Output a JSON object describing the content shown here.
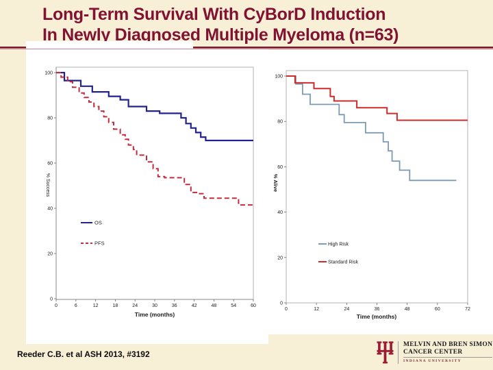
{
  "slide": {
    "title_line1": "Long-Term Survival With CyBorD Induction",
    "title_line2": "In Newly Diagnosed Multiple Myeloma (n=63)",
    "citation": "Reeder C.B. et al ASH 2013, #3192",
    "background_color": "#F7F0D6",
    "title_color": "#821231",
    "underline_color": "#7A1228"
  },
  "logo": {
    "org_line1": "MELVIN AND BREN SIMON",
    "org_line2": "CANCER CENTER",
    "university": "INDIANA UNIVERSITY",
    "trident_icon": "iu-trident",
    "trident_color": "#9D1C35"
  },
  "chart_data": [
    {
      "type": "line",
      "subtype": "kaplan-meier-step",
      "title": "",
      "xlabel": "Time (months)",
      "ylabel": "% Success",
      "xlim": [
        0,
        60
      ],
      "ylim": [
        0,
        100
      ],
      "xticks": [
        0,
        6,
        12,
        18,
        24,
        30,
        36,
        42,
        48,
        54,
        60
      ],
      "yticks": [
        0,
        20,
        40,
        60,
        80,
        100
      ],
      "grid": false,
      "legend_position": "inside-lower-left",
      "series": [
        {
          "name": "OS",
          "color": "#22228F",
          "style": "solid",
          "points": [
            [
              0,
              100
            ],
            [
              2.5,
              100
            ],
            [
              2.5,
              96.5
            ],
            [
              7.5,
              96.5
            ],
            [
              7.5,
              94
            ],
            [
              11,
              94
            ],
            [
              11,
              91.5
            ],
            [
              16,
              91.5
            ],
            [
              16,
              89.5
            ],
            [
              19.5,
              89.5
            ],
            [
              19.5,
              88
            ],
            [
              22,
              88
            ],
            [
              22,
              85
            ],
            [
              27.5,
              85
            ],
            [
              27.5,
              83
            ],
            [
              31.5,
              83
            ],
            [
              31.5,
              82
            ],
            [
              38,
              82
            ],
            [
              38,
              80
            ],
            [
              39.5,
              80
            ],
            [
              39.5,
              77.5
            ],
            [
              41,
              77.5
            ],
            [
              41,
              75.5
            ],
            [
              42.5,
              75.5
            ],
            [
              42.5,
              73.5
            ],
            [
              44,
              73.5
            ],
            [
              44,
              71.5
            ],
            [
              45.5,
              71.5
            ],
            [
              45.5,
              70
            ],
            [
              60,
              70
            ]
          ]
        },
        {
          "name": "PFS",
          "color": "#C22B3B",
          "style": "dashed",
          "points": [
            [
              0,
              100
            ],
            [
              1.5,
              100
            ],
            [
              1.5,
              98
            ],
            [
              3.5,
              98
            ],
            [
              3.5,
              96
            ],
            [
              5,
              96
            ],
            [
              5,
              93.5
            ],
            [
              7,
              93.5
            ],
            [
              7,
              91
            ],
            [
              8.5,
              91
            ],
            [
              8.5,
              89
            ],
            [
              10,
              89
            ],
            [
              10,
              87
            ],
            [
              11.5,
              87
            ],
            [
              11.5,
              85
            ],
            [
              13,
              85
            ],
            [
              13,
              83
            ],
            [
              14.5,
              83
            ],
            [
              14.5,
              80.5
            ],
            [
              16,
              80.5
            ],
            [
              16,
              78
            ],
            [
              17.5,
              78
            ],
            [
              17.5,
              75
            ],
            [
              19.5,
              75
            ],
            [
              19.5,
              72.5
            ],
            [
              21,
              72.5
            ],
            [
              21,
              70.5
            ],
            [
              22,
              70.5
            ],
            [
              22,
              68
            ],
            [
              23.5,
              68
            ],
            [
              23.5,
              66
            ],
            [
              24.5,
              66
            ],
            [
              24.5,
              63.5
            ],
            [
              27.5,
              63.5
            ],
            [
              27.5,
              60.5
            ],
            [
              29.5,
              60.5
            ],
            [
              29.5,
              57.5
            ],
            [
              31,
              57.5
            ],
            [
              31,
              54
            ],
            [
              33,
              54
            ],
            [
              33,
              53.5
            ],
            [
              39,
              53.5
            ],
            [
              39,
              50.5
            ],
            [
              41,
              50.5
            ],
            [
              41,
              47
            ],
            [
              43,
              47
            ],
            [
              43,
              46.5
            ],
            [
              45,
              46.5
            ],
            [
              45,
              44.5
            ],
            [
              55.5,
              44.5
            ],
            [
              55.5,
              41.5
            ],
            [
              60,
              41.5
            ]
          ]
        }
      ]
    },
    {
      "type": "line",
      "subtype": "kaplan-meier-step",
      "title": "",
      "xlabel": "Time (months)",
      "ylabel": "% Alive",
      "xlim": [
        0,
        72
      ],
      "ylim": [
        0,
        100
      ],
      "xticks": [
        0,
        12,
        24,
        36,
        48,
        60,
        72
      ],
      "yticks": [
        0,
        20,
        40,
        60,
        80,
        100
      ],
      "grid": false,
      "legend_position": "inside-lower-left",
      "series": [
        {
          "name": "High Risk",
          "color": "#7D9AB5",
          "style": "solid",
          "points": [
            [
              0,
              100
            ],
            [
              3.8,
              100
            ],
            [
              3.8,
              96.5
            ],
            [
              6.5,
              96.5
            ],
            [
              6.5,
              92
            ],
            [
              9.5,
              92
            ],
            [
              9.5,
              87.5
            ],
            [
              21,
              87.5
            ],
            [
              21,
              83
            ],
            [
              23,
              83
            ],
            [
              23,
              79.5
            ],
            [
              31.5,
              79.5
            ],
            [
              31.5,
              75
            ],
            [
              38.5,
              75
            ],
            [
              38.5,
              71
            ],
            [
              40.5,
              71
            ],
            [
              40.5,
              67
            ],
            [
              42,
              67
            ],
            [
              42,
              62.5
            ],
            [
              45,
              62.5
            ],
            [
              45,
              58.5
            ],
            [
              49,
              58.5
            ],
            [
              49,
              54
            ],
            [
              67.5,
              54
            ]
          ]
        },
        {
          "name": "Standard Risk",
          "color": "#CE2B2B",
          "style": "solid",
          "points": [
            [
              0,
              100
            ],
            [
              3.5,
              100
            ],
            [
              3.5,
              97
            ],
            [
              11,
              97
            ],
            [
              11,
              94.5
            ],
            [
              17.5,
              94.5
            ],
            [
              17.5,
              91
            ],
            [
              19,
              91
            ],
            [
              19,
              89
            ],
            [
              28,
              89
            ],
            [
              28,
              86
            ],
            [
              40,
              86
            ],
            [
              40,
              83.5
            ],
            [
              44,
              83.5
            ],
            [
              44,
              80.5
            ],
            [
              72,
              80.5
            ]
          ]
        }
      ]
    }
  ]
}
